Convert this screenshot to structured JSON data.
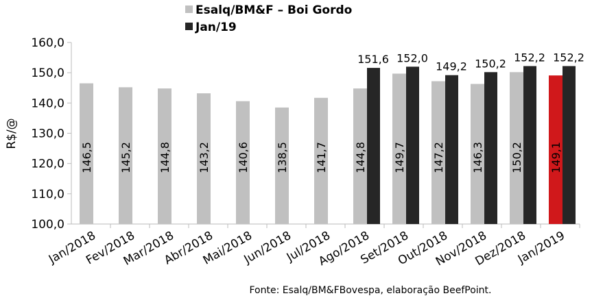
{
  "chart_data": {
    "type": "bar",
    "ylabel": "R$/@",
    "ylim": [
      100,
      160
    ],
    "yticks": [
      "100,0",
      "110,0",
      "120,0",
      "130,0",
      "140,0",
      "150,0",
      "160,0"
    ],
    "categories": [
      "Jan/2018",
      "Fev/2018",
      "Mar/2018",
      "Abr/2018",
      "Mai/2018",
      "Jun/2018",
      "Jul/2018",
      "Ago/2018",
      "Set/2018",
      "Out/2018",
      "Nov/2018",
      "Dez/2018",
      "Jan/2019"
    ],
    "series": [
      {
        "name": "Esalq/BM&F – Boi Gordo",
        "color": "#c0c0c0",
        "highlight_color": "#d0181b",
        "highlight_index": 12,
        "values": [
          146.5,
          145.2,
          144.8,
          143.2,
          140.6,
          138.5,
          141.7,
          144.8,
          149.7,
          147.2,
          146.3,
          150.2,
          149.1
        ],
        "labels": [
          "146,5",
          "145,2",
          "144,8",
          "143,2",
          "140,6",
          "138,5",
          "141,7",
          "144,8",
          "149,7",
          "147,2",
          "146,3",
          "150,2",
          "149,1"
        ]
      },
      {
        "name": "Jan/19",
        "color": "#262626",
        "values": [
          null,
          null,
          null,
          null,
          null,
          null,
          null,
          151.6,
          152.0,
          149.2,
          150.2,
          152.2,
          152.2
        ],
        "labels": [
          null,
          null,
          null,
          null,
          null,
          null,
          null,
          "151,6",
          "152,0",
          "149,2",
          "150,2",
          "152,2",
          "152,2"
        ]
      }
    ],
    "legend": "top-center",
    "grid": false,
    "source": "Fonte: Esalq/BM&FBovespa, elaboração BeefPoint."
  }
}
